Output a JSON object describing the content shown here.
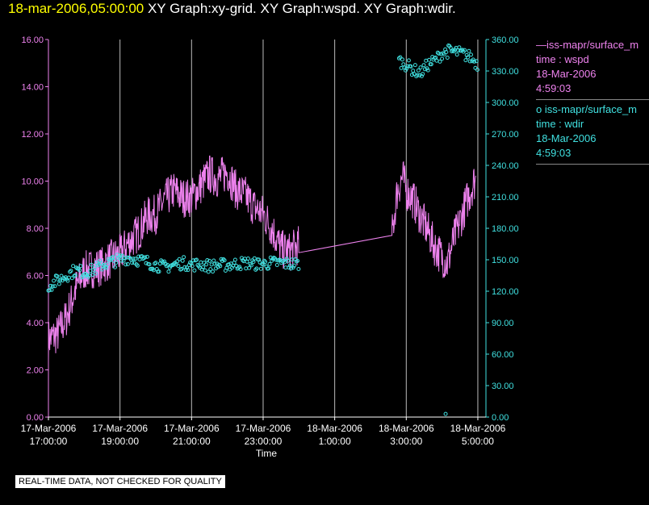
{
  "header": {
    "timestamp": "18-mar-2006,05:00:00",
    "graphs": [
      "XY Graph:xy-grid.",
      "XY Graph:wspd.",
      "XY Graph:wdir."
    ]
  },
  "legend": [
    {
      "symbol": "—",
      "series": "iss-mapr/surface_m",
      "line2": "time : wspd",
      "date": "18-Mar-2006",
      "time": "4:59:03"
    },
    {
      "symbol": "o",
      "series": "iss-mapr/surface_m",
      "line2": "time : wdir",
      "date": "18-Mar-2006",
      "time": "4:59:03"
    }
  ],
  "note": "REAL-TIME DATA, NOT CHECKED FOR QUALITY",
  "colors": {
    "wspd": "#ee82ee",
    "wdir": "#40e0e0",
    "grid": "#ffffff",
    "axis": "#ffffff",
    "background": "#000000"
  },
  "chart_data": {
    "type": "line",
    "xlabel": "Time",
    "x_ticks": [
      {
        "d": "17-Mar-2006",
        "t": "17:00:00",
        "h": 17
      },
      {
        "d": "17-Mar-2006",
        "t": "19:00:00",
        "h": 19
      },
      {
        "d": "17-Mar-2006",
        "t": "21:00:00",
        "h": 21
      },
      {
        "d": "17-Mar-2006",
        "t": "23:00:00",
        "h": 23
      },
      {
        "d": "18-Mar-2006",
        "t": "1:00:00",
        "h": 25
      },
      {
        "d": "18-Mar-2006",
        "t": "3:00:00",
        "h": 27
      },
      {
        "d": "18-Mar-2006",
        "t": "5:00:00",
        "h": 29
      }
    ],
    "xlim_hours": [
      17,
      29
    ],
    "grid": "vertical",
    "y_left": {
      "ylim": [
        0,
        16
      ],
      "ticks": [
        "0.00",
        "2.00",
        "4.00",
        "6.00",
        "8.00",
        "10.00",
        "12.00",
        "14.00",
        "16.00"
      ]
    },
    "y_right": {
      "ylim": [
        0,
        360
      ],
      "ticks": [
        "0.00",
        "30.00",
        "60.00",
        "90.00",
        "120.00",
        "150.00",
        "180.00",
        "210.00",
        "240.00",
        "270.00",
        "300.00",
        "330.00",
        "360.00"
      ]
    },
    "series": [
      {
        "key": "wspd",
        "axis": "left",
        "style": "line",
        "points": [
          [
            17.0,
            3.3
          ],
          [
            17.25,
            3.5
          ],
          [
            17.5,
            4.2
          ],
          [
            17.75,
            5.4
          ],
          [
            18.0,
            6.2
          ],
          [
            18.25,
            6.3
          ],
          [
            18.5,
            6.4
          ],
          [
            18.75,
            6.7
          ],
          [
            19.0,
            6.9
          ],
          [
            19.25,
            7.4
          ],
          [
            19.5,
            7.8
          ],
          [
            19.75,
            8.5
          ],
          [
            20.0,
            8.6
          ],
          [
            20.25,
            9.2
          ],
          [
            20.5,
            9.6
          ],
          [
            20.75,
            9.3
          ],
          [
            21.0,
            9.3
          ],
          [
            21.25,
            9.8
          ],
          [
            21.5,
            10.3
          ],
          [
            21.75,
            10.1
          ],
          [
            22.0,
            10.4
          ],
          [
            22.25,
            9.6
          ],
          [
            22.5,
            9.4
          ],
          [
            22.75,
            8.9
          ],
          [
            23.0,
            8.6
          ],
          [
            23.25,
            8.0
          ],
          [
            23.5,
            7.1
          ],
          [
            23.75,
            7.0
          ],
          [
            24.0,
            7.3
          ],
          [
            25.0,
            7.5
          ],
          [
            26.0,
            7.6
          ],
          [
            26.6,
            7.7
          ],
          [
            26.75,
            9.6
          ],
          [
            26.9,
            10.2
          ],
          [
            27.0,
            9.6
          ],
          [
            27.2,
            9.2
          ],
          [
            27.4,
            8.5
          ],
          [
            27.6,
            7.9
          ],
          [
            27.8,
            7.2
          ],
          [
            28.0,
            6.8
          ],
          [
            28.15,
            6.5
          ],
          [
            28.3,
            7.4
          ],
          [
            28.5,
            8.3
          ],
          [
            28.7,
            9.2
          ],
          [
            28.9,
            10.0
          ]
        ],
        "noise": 0.85
      },
      {
        "key": "wdir",
        "axis": "right",
        "style": "circle",
        "points": [
          [
            17.0,
            125
          ],
          [
            17.25,
            130
          ],
          [
            17.5,
            135
          ],
          [
            17.75,
            140
          ],
          [
            18.0,
            138
          ],
          [
            18.25,
            140
          ],
          [
            18.5,
            145
          ],
          [
            18.75,
            148
          ],
          [
            19.0,
            150
          ],
          [
            19.25,
            152
          ],
          [
            19.5,
            150
          ],
          [
            19.75,
            148
          ],
          [
            20.0,
            145
          ],
          [
            20.25,
            143
          ],
          [
            20.5,
            145
          ],
          [
            20.75,
            147
          ],
          [
            21.0,
            145
          ],
          [
            21.25,
            146
          ],
          [
            21.5,
            144
          ],
          [
            21.75,
            145
          ],
          [
            22.0,
            145
          ],
          [
            22.25,
            146
          ],
          [
            22.5,
            147
          ],
          [
            22.75,
            146
          ],
          [
            23.0,
            146
          ],
          [
            23.25,
            147
          ],
          [
            23.5,
            147
          ],
          [
            23.75,
            146
          ],
          [
            24.0,
            146
          ],
          [
            26.8,
            340
          ],
          [
            27.0,
            336
          ],
          [
            27.2,
            331
          ],
          [
            27.4,
            328
          ],
          [
            27.6,
            336
          ],
          [
            27.8,
            340
          ],
          [
            28.0,
            347
          ],
          [
            28.2,
            349
          ],
          [
            28.4,
            348
          ],
          [
            28.6,
            346
          ],
          [
            28.8,
            343
          ],
          [
            29.0,
            336
          ]
        ],
        "noise": 6,
        "outliers": [
          [
            28.1,
            3
          ]
        ]
      }
    ]
  }
}
